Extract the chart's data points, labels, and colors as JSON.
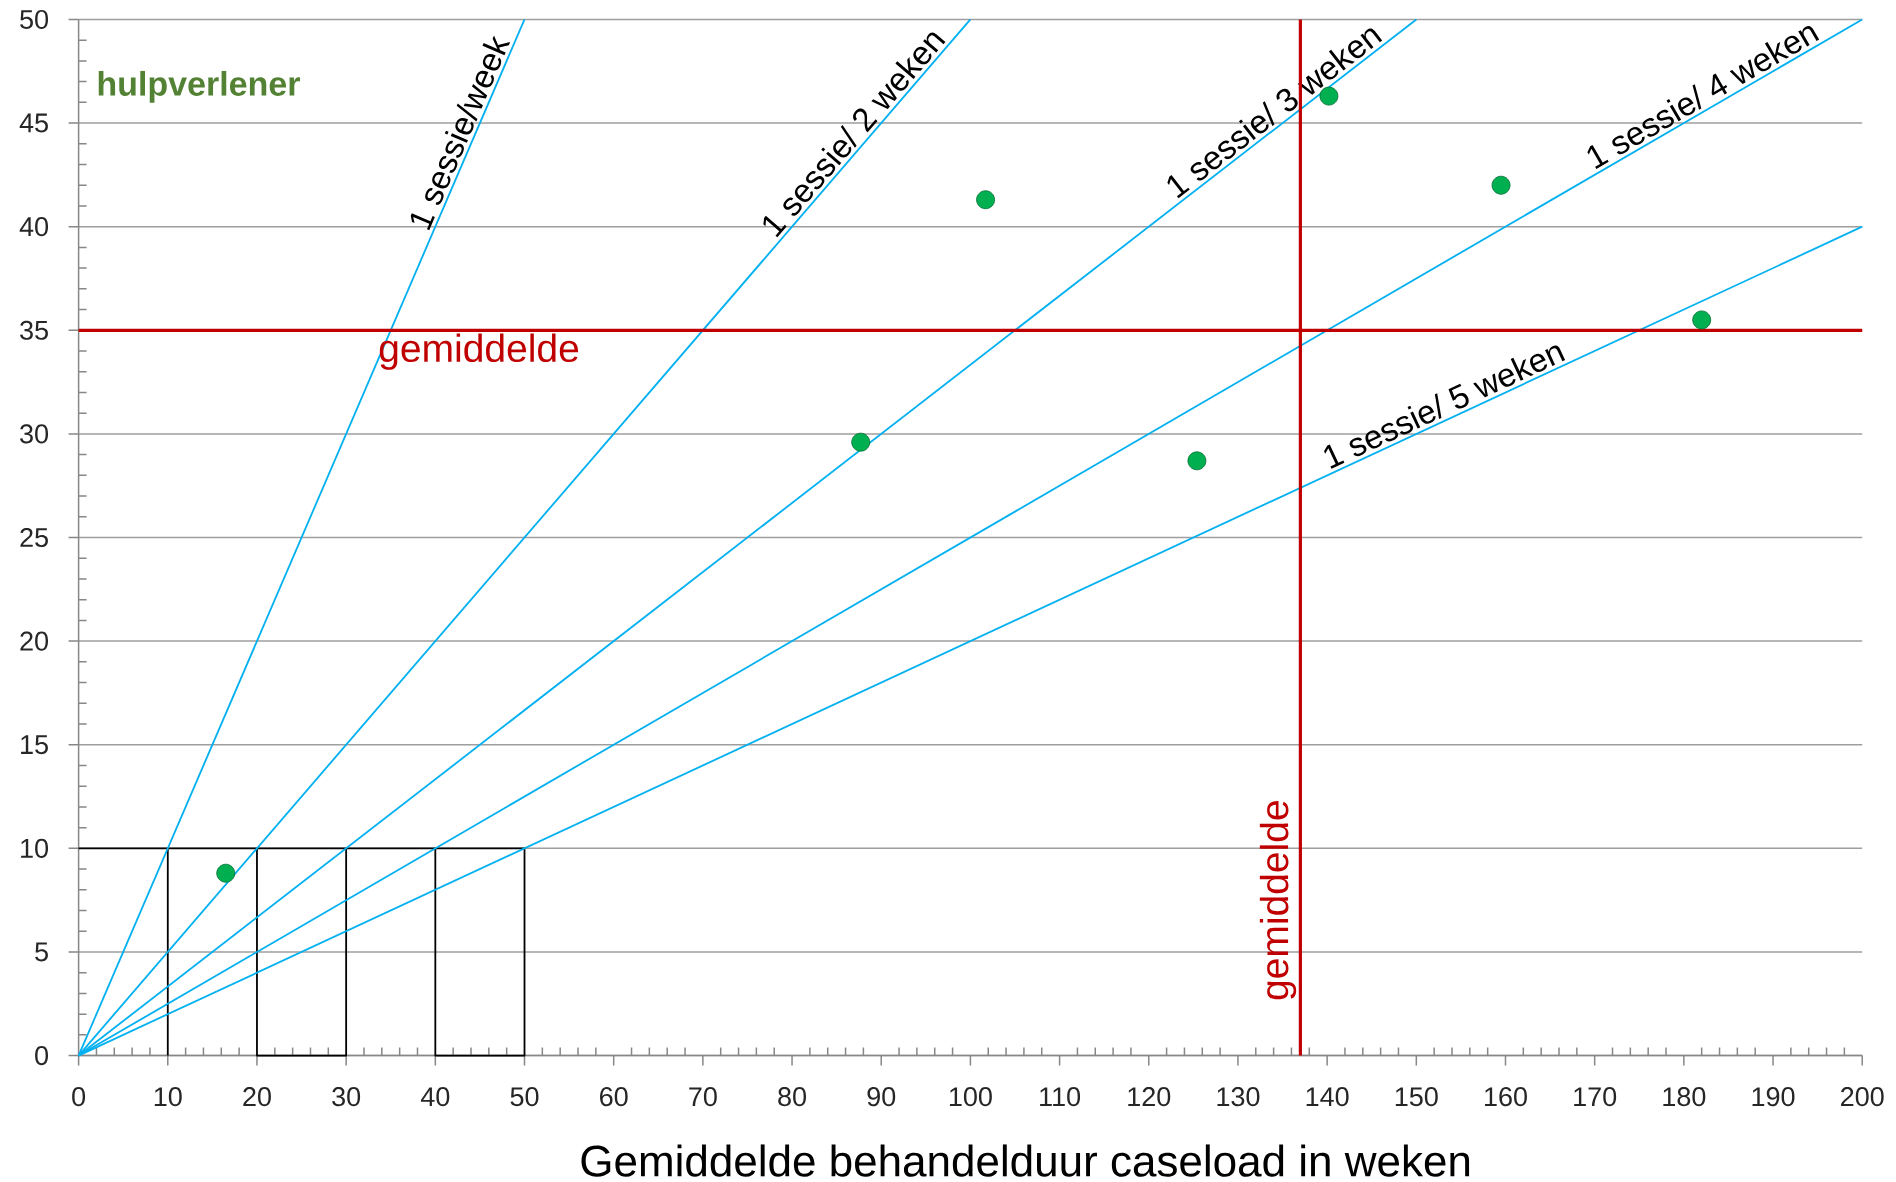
{
  "chart_data": {
    "type": "scatter",
    "xlabel": "Gemiddelde behandelduur caseload in weken",
    "ylabel": "hulpverlener",
    "xlim": [
      0,
      200
    ],
    "ylim": [
      0,
      50
    ],
    "xticks": [
      0,
      10,
      20,
      30,
      40,
      50,
      60,
      70,
      80,
      90,
      100,
      110,
      120,
      130,
      140,
      150,
      160,
      170,
      180,
      190,
      200
    ],
    "yticks": [
      0,
      5,
      10,
      15,
      20,
      25,
      30,
      35,
      40,
      45,
      50
    ],
    "grid": "y",
    "series": [
      {
        "type": "line",
        "color": "#000000",
        "x": [
          0,
          50,
          50,
          40,
          40,
          30,
          30,
          20,
          20,
          10,
          10
        ],
        "values": [
          10,
          10,
          0,
          0,
          10,
          10,
          0,
          0,
          10,
          10,
          0
        ]
      },
      {
        "type": "line",
        "name": "1 sessie/week",
        "color": "#00b0f0",
        "x": [
          0,
          50
        ],
        "values": [
          0,
          50
        ]
      },
      {
        "type": "line",
        "name": "1 sessie/ 2 weken",
        "color": "#00b0f0",
        "x": [
          0,
          100
        ],
        "values": [
          0,
          50
        ]
      },
      {
        "type": "line",
        "name": "1 sessie/ 3 weken",
        "color": "#00b0f0",
        "x": [
          0,
          150
        ],
        "values": [
          0,
          50
        ]
      },
      {
        "type": "line",
        "name": "1 sessie/ 4 weken",
        "color": "#00b0f0",
        "x": [
          0,
          200
        ],
        "values": [
          0,
          50
        ]
      },
      {
        "type": "line",
        "name": "1 sessie/ 5 weken",
        "color": "#00b0f0",
        "x": [
          0,
          200
        ],
        "values": [
          0,
          40
        ]
      },
      {
        "color": "#00b050",
        "marker": "circle",
        "x": [
          16.5,
          87.7,
          101.7,
          125.4,
          140.2,
          159.5,
          182.0
        ],
        "values": [
          8.8,
          29.6,
          41.3,
          28.7,
          46.3,
          42.0,
          35.5
        ]
      }
    ],
    "ref_lines": [
      {
        "axis": "y",
        "value": 35,
        "label": "gemiddelde",
        "color": "#c00000"
      },
      {
        "axis": "x",
        "value": 137,
        "label": "gemiddelde",
        "color": "#c00000"
      }
    ]
  }
}
